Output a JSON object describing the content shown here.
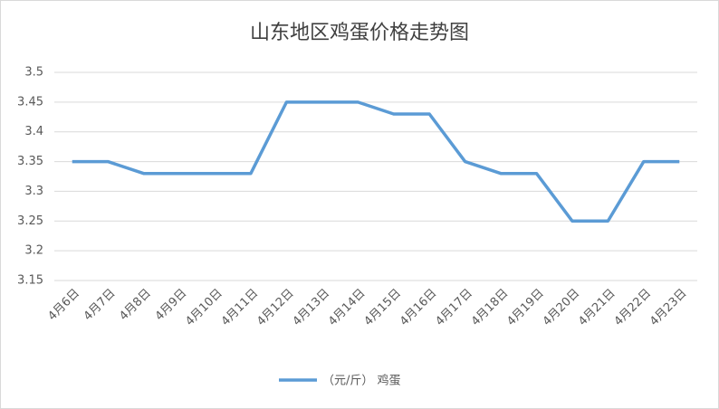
{
  "chart_data": {
    "type": "line",
    "title": "山东地区鸡蛋价格走势图",
    "categories": [
      "4月6日",
      "4月7日",
      "4月8日",
      "4月9日",
      "4月10日",
      "4月11日",
      "4月12日",
      "4月13日",
      "4月14日",
      "4月15日",
      "4月16日",
      "4月17日",
      "4月18日",
      "4月19日",
      "4月20日",
      "4月21日",
      "4月22日",
      "4月23日"
    ],
    "series": [
      {
        "name": "（元/斤） 鸡蛋",
        "color": "#5b9bd5",
        "values": [
          3.35,
          3.35,
          3.33,
          3.33,
          3.33,
          3.33,
          3.45,
          3.45,
          3.45,
          3.43,
          3.43,
          3.35,
          3.33,
          3.33,
          3.25,
          3.25,
          3.35,
          3.35
        ]
      }
    ],
    "ylim": [
      3.15,
      3.5
    ],
    "yticks": [
      3.15,
      3.2,
      3.25,
      3.3,
      3.35,
      3.4,
      3.45,
      3.5
    ],
    "grid": true,
    "legend": "bottom"
  }
}
